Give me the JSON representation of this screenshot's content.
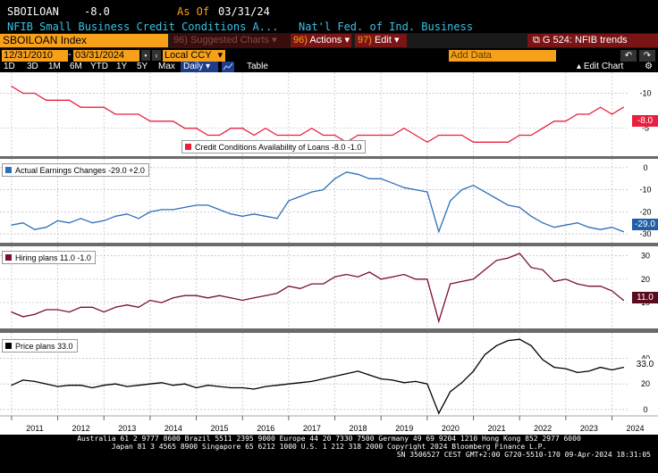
{
  "header": {
    "ticker": "SBOILOAN",
    "last": "-8.0",
    "asof_label": "As Of",
    "asof_date": "03/31/24",
    "description": "NFIB Small Business Credit Conditions A...",
    "source": "Nat'l Fed. of Ind. Business"
  },
  "toolbar": {
    "security": "SBOILOAN Index",
    "suggested_num": "96)",
    "suggested_label": "Suggested Charts",
    "actions_num": "96)",
    "actions_label": "Actions",
    "edit_num": "97)",
    "edit_label": "Edit",
    "chart_title": "G 524: NFIB trends"
  },
  "range": {
    "start": "12/31/2010",
    "end": "03/31/2024",
    "currency": "Local CCY",
    "add_data": "Add Data"
  },
  "periods": [
    "1D",
    "3D",
    "1M",
    "6M",
    "YTD",
    "1Y",
    "5Y",
    "Max"
  ],
  "frequency": "Daily",
  "table_label": "Table",
  "edit_chart_label": "Edit Chart",
  "icons": {
    "export": "export-icon",
    "undo": "undo-icon",
    "redo": "redo-icon",
    "settings": "gear-icon",
    "line_chart": "line-chart-icon"
  },
  "colors": {
    "background": "#000000",
    "accent_orange": "#f7a11a",
    "header_cyan": "#37c3e6",
    "action_red": "#7b1515"
  },
  "chart_data": [
    {
      "type": "line",
      "legend": "Credit Conditions Availability of Loans -8.0  -1.0",
      "color": "#e8203f",
      "last_label": "-8.0",
      "y_ticks": [
        "-5",
        "-10"
      ],
      "ylim": [
        -13,
        -1
      ],
      "inverted": true,
      "x": [
        2011.0,
        2011.25,
        2011.5,
        2011.75,
        2012.0,
        2012.25,
        2012.5,
        2012.75,
        2013.0,
        2013.25,
        2013.5,
        2013.75,
        2014.0,
        2014.25,
        2014.5,
        2014.75,
        2015.0,
        2015.25,
        2015.5,
        2015.75,
        2016.0,
        2016.25,
        2016.5,
        2016.75,
        2017.0,
        2017.25,
        2017.5,
        2017.75,
        2018.0,
        2018.25,
        2018.5,
        2018.75,
        2019.0,
        2019.25,
        2019.5,
        2019.75,
        2020.0,
        2020.25,
        2020.5,
        2020.75,
        2021.0,
        2021.25,
        2021.5,
        2021.75,
        2022.0,
        2022.25,
        2022.5,
        2022.75,
        2023.0,
        2023.25,
        2023.5,
        2023.75,
        2024.0,
        2024.25
      ],
      "values": [
        -11,
        -10,
        -10,
        -9,
        -9,
        -9,
        -8,
        -8,
        -8,
        -7,
        -7,
        -7,
        -6,
        -6,
        -6,
        -5,
        -5,
        -4,
        -4,
        -5,
        -5,
        -4,
        -5,
        -4,
        -4,
        -4,
        -5,
        -4,
        -4,
        -3,
        -4,
        -4,
        -4,
        -4,
        -5,
        -4,
        -3,
        -4,
        -4,
        -4,
        -3,
        -3,
        -3,
        -3,
        -4,
        -4,
        -5,
        -6,
        -6,
        -7,
        -7,
        -8,
        -7,
        -8
      ],
      "x_ticks": [
        "2011",
        "2012",
        "2013",
        "2014",
        "2015",
        "2016",
        "2017",
        "2018",
        "2019",
        "2020",
        "2021",
        "2022",
        "2023",
        "2024"
      ]
    },
    {
      "type": "line",
      "legend": "Actual Earnings Changes -29.0  +2.0",
      "color": "#2e6fb8",
      "last_label": "-29.0",
      "y_ticks": [
        "0",
        "-10",
        "-20",
        "-30"
      ],
      "ylim": [
        -34,
        4
      ],
      "x": [
        2011.0,
        2011.25,
        2011.5,
        2011.75,
        2012.0,
        2012.25,
        2012.5,
        2012.75,
        2013.0,
        2013.25,
        2013.5,
        2013.75,
        2014.0,
        2014.25,
        2014.5,
        2014.75,
        2015.0,
        2015.25,
        2015.5,
        2015.75,
        2016.0,
        2016.25,
        2016.5,
        2016.75,
        2017.0,
        2017.25,
        2017.5,
        2017.75,
        2018.0,
        2018.25,
        2018.5,
        2018.75,
        2019.0,
        2019.25,
        2019.5,
        2019.75,
        2020.0,
        2020.25,
        2020.5,
        2020.75,
        2021.0,
        2021.25,
        2021.5,
        2021.75,
        2022.0,
        2022.25,
        2022.5,
        2022.75,
        2023.0,
        2023.25,
        2023.5,
        2023.75,
        2024.0,
        2024.25
      ],
      "values": [
        -26,
        -25,
        -28,
        -27,
        -24,
        -25,
        -23,
        -25,
        -24,
        -22,
        -21,
        -23,
        -20,
        -19,
        -19,
        -18,
        -17,
        -17,
        -19,
        -21,
        -22,
        -21,
        -22,
        -23,
        -15,
        -13,
        -11,
        -10,
        -5,
        -2,
        -3,
        -5,
        -5,
        -7,
        -9,
        -10,
        -11,
        -29,
        -15,
        -10,
        -8,
        -11,
        -14,
        -17,
        -18,
        -22,
        -25,
        -27,
        -26,
        -25,
        -27,
        -28,
        -27,
        -29
      ],
      "x_ticks": []
    },
    {
      "type": "line",
      "legend": "Hiring plans 11.0  -1.0",
      "color": "#7a0f2b",
      "last_label": "11.0",
      "y_ticks": [
        "30",
        "20",
        "10"
      ],
      "ylim": [
        -1,
        34
      ],
      "x": [
        2011.0,
        2011.25,
        2011.5,
        2011.75,
        2012.0,
        2012.25,
        2012.5,
        2012.75,
        2013.0,
        2013.25,
        2013.5,
        2013.75,
        2014.0,
        2014.25,
        2014.5,
        2014.75,
        2015.0,
        2015.25,
        2015.5,
        2015.75,
        2016.0,
        2016.25,
        2016.5,
        2016.75,
        2017.0,
        2017.25,
        2017.5,
        2017.75,
        2018.0,
        2018.25,
        2018.5,
        2018.75,
        2019.0,
        2019.25,
        2019.5,
        2019.75,
        2020.0,
        2020.25,
        2020.5,
        2020.75,
        2021.0,
        2021.25,
        2021.5,
        2021.75,
        2022.0,
        2022.25,
        2022.5,
        2022.75,
        2023.0,
        2023.25,
        2023.5,
        2023.75,
        2024.0,
        2024.25
      ],
      "values": [
        6,
        4,
        5,
        7,
        7,
        6,
        8,
        8,
        6,
        8,
        9,
        8,
        11,
        10,
        12,
        13,
        13,
        12,
        13,
        12,
        11,
        12,
        13,
        14,
        17,
        16,
        18,
        18,
        21,
        22,
        21,
        23,
        20,
        21,
        22,
        20,
        20,
        2,
        18,
        19,
        20,
        24,
        28,
        29,
        31,
        25,
        24,
        19,
        20,
        18,
        17,
        17,
        15,
        11
      ],
      "x_ticks": []
    },
    {
      "type": "line",
      "legend": "Price plans 33.0",
      "color": "#000000",
      "last_label": "33.0",
      "y_ticks": [
        "40",
        "20",
        "0"
      ],
      "ylim": [
        -5,
        60
      ],
      "x": [
        2011.0,
        2011.25,
        2011.5,
        2011.75,
        2012.0,
        2012.25,
        2012.5,
        2012.75,
        2013.0,
        2013.25,
        2013.5,
        2013.75,
        2014.0,
        2014.25,
        2014.5,
        2014.75,
        2015.0,
        2015.25,
        2015.5,
        2015.75,
        2016.0,
        2016.25,
        2016.5,
        2016.75,
        2017.0,
        2017.25,
        2017.5,
        2017.75,
        2018.0,
        2018.25,
        2018.5,
        2018.75,
        2019.0,
        2019.25,
        2019.5,
        2019.75,
        2020.0,
        2020.25,
        2020.5,
        2020.75,
        2021.0,
        2021.25,
        2021.5,
        2021.75,
        2022.0,
        2022.25,
        2022.5,
        2022.75,
        2023.0,
        2023.25,
        2023.5,
        2023.75,
        2024.0,
        2024.25
      ],
      "values": [
        19,
        23,
        22,
        20,
        18,
        19,
        19,
        17,
        19,
        20,
        18,
        19,
        20,
        21,
        19,
        20,
        17,
        19,
        18,
        17,
        17,
        16,
        18,
        19,
        20,
        21,
        22,
        24,
        26,
        28,
        30,
        27,
        24,
        23,
        21,
        22,
        20,
        -3,
        14,
        21,
        30,
        43,
        50,
        54,
        55,
        50,
        39,
        33,
        32,
        29,
        30,
        33,
        31,
        33
      ],
      "x_ticks": []
    }
  ],
  "footer": {
    "line1": "Australia 61 2 9777 8600 Brazil 5511 2395 9000 Europe 44 20 7330 7500 Germany 49 69 9204 1210 Hong Kong 852 2977 6000",
    "line2": "Japan 81 3 4565 8900       Singapore 65 6212 1000      U.S. 1 212 318 2000       Copyright 2024 Bloomberg Finance L.P.",
    "line3": "SN 3506527 CEST GMT+2:00 G720-5510-170 09-Apr-2024 18:31:05"
  }
}
